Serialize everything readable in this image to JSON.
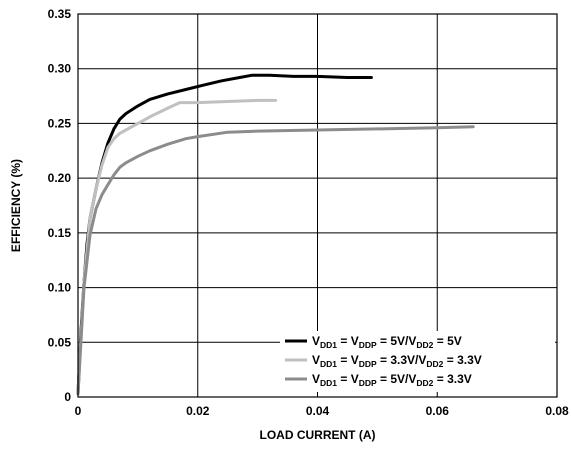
{
  "chart_data": {
    "type": "line",
    "xlabel": "LOAD CURRENT (A)",
    "ylabel": "EFFICIENCY (%)",
    "xlim": [
      0,
      0.08
    ],
    "ylim": [
      0,
      0.35
    ],
    "x_ticks": [
      "0",
      "0.02",
      "0.04",
      "0.06",
      "0.08"
    ],
    "y_ticks": [
      "0",
      "0.05",
      "0.10",
      "0.15",
      "0.20",
      "0.25",
      "0.30",
      "0.35"
    ],
    "grid": true,
    "legend_position": "bottom-right",
    "series": [
      {
        "legend": [
          {
            "t": "V",
            "s": false
          },
          {
            "t": "DD1",
            "s": true
          },
          {
            "t": " = V",
            "s": false
          },
          {
            "t": "DDP",
            "s": true
          },
          {
            "t": " = 5V/V",
            "s": false
          },
          {
            "t": "DD2",
            "s": true
          },
          {
            "t": " = 5V",
            "s": false
          }
        ],
        "color": "#000000",
        "x": [
          0,
          0.0005,
          0.001,
          0.0015,
          0.002,
          0.003,
          0.004,
          0.005,
          0.006,
          0.007,
          0.008,
          0.01,
          0.012,
          0.015,
          0.018,
          0.021,
          0.024,
          0.027,
          0.029,
          0.032,
          0.036,
          0.04,
          0.045,
          0.049
        ],
        "y": [
          0.003,
          0.06,
          0.105,
          0.14,
          0.163,
          0.19,
          0.214,
          0.232,
          0.245,
          0.254,
          0.259,
          0.266,
          0.272,
          0.277,
          0.281,
          0.285,
          0.289,
          0.292,
          0.294,
          0.294,
          0.293,
          0.293,
          0.292,
          0.292
        ]
      },
      {
        "legend": [
          {
            "t": "V",
            "s": false
          },
          {
            "t": "DD1",
            "s": true
          },
          {
            "t": " = V",
            "s": false
          },
          {
            "t": "DDP",
            "s": true
          },
          {
            "t": " = 3.3V/V",
            "s": false
          },
          {
            "t": "DD2",
            "s": true
          },
          {
            "t": " = 3.3V",
            "s": false
          }
        ],
        "color": "#c0c0c0",
        "x": [
          0,
          0.001,
          0.002,
          0.003,
          0.004,
          0.005,
          0.006,
          0.007,
          0.008,
          0.01,
          0.012,
          0.015,
          0.017,
          0.02,
          0.025,
          0.03,
          0.033
        ],
        "y": [
          0.003,
          0.105,
          0.163,
          0.19,
          0.212,
          0.228,
          0.236,
          0.241,
          0.244,
          0.25,
          0.256,
          0.264,
          0.269,
          0.269,
          0.27,
          0.271,
          0.271
        ]
      },
      {
        "legend": [
          {
            "t": "V",
            "s": false
          },
          {
            "t": "DD1",
            "s": true
          },
          {
            "t": " = V",
            "s": false
          },
          {
            "t": "DDP",
            "s": true
          },
          {
            "t": " = 5V/V",
            "s": false
          },
          {
            "t": "DD2",
            "s": true
          },
          {
            "t": " = 3.3V",
            "s": false
          }
        ],
        "color": "#8c8c8c",
        "x": [
          0,
          0.001,
          0.002,
          0.003,
          0.004,
          0.005,
          0.006,
          0.007,
          0.008,
          0.01,
          0.012,
          0.015,
          0.018,
          0.02,
          0.025,
          0.03,
          0.04,
          0.05,
          0.06,
          0.066
        ],
        "y": [
          0.003,
          0.1,
          0.148,
          0.172,
          0.185,
          0.194,
          0.203,
          0.21,
          0.214,
          0.22,
          0.225,
          0.231,
          0.236,
          0.238,
          0.242,
          0.243,
          0.244,
          0.245,
          0.246,
          0.247
        ]
      }
    ]
  }
}
